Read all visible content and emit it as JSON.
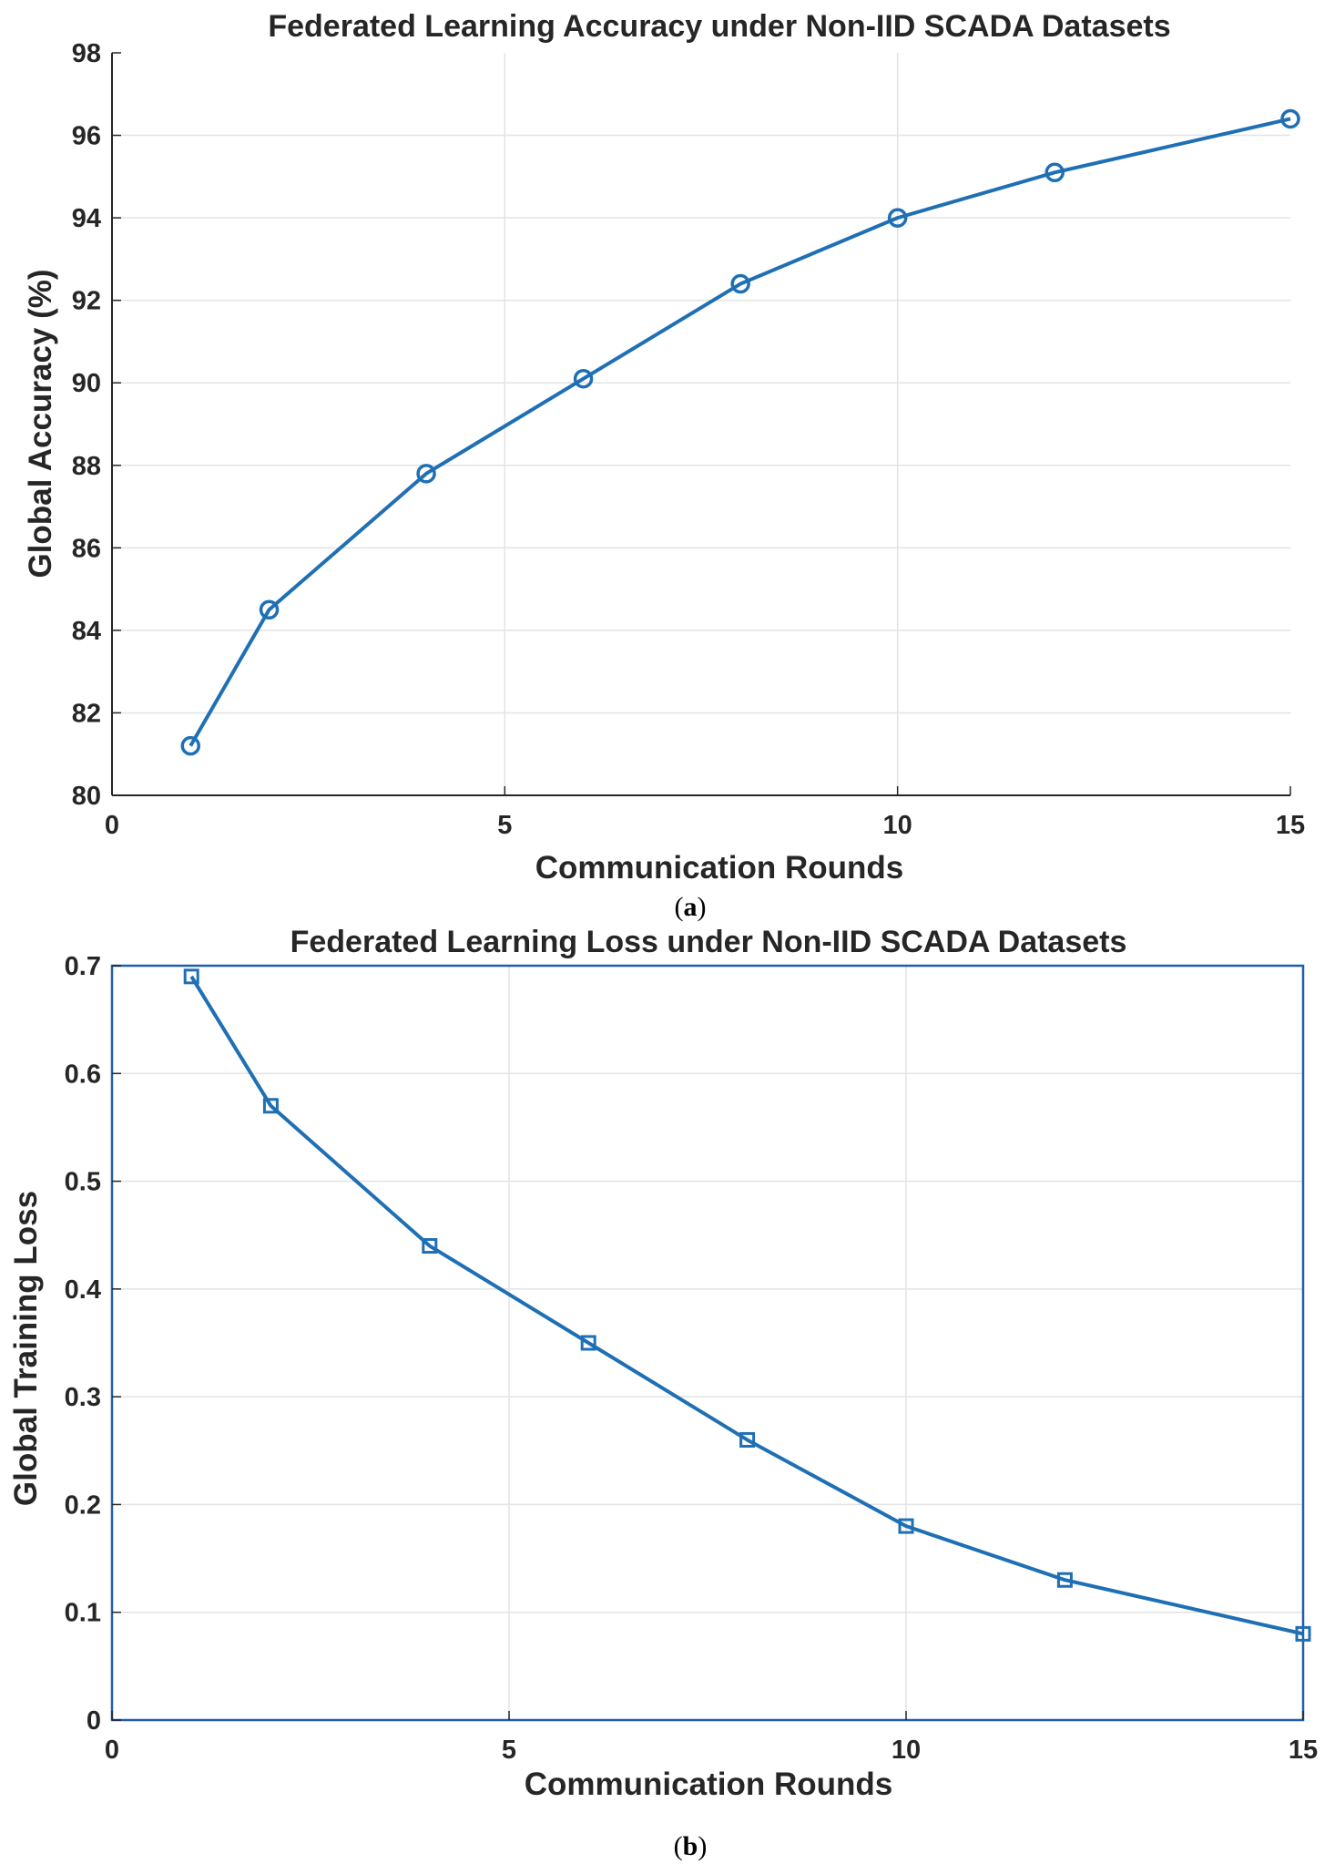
{
  "chart_data": [
    {
      "type": "line",
      "title": "Federated Learning Accuracy under Non-IID SCADA Datasets",
      "xlabel": "Communication Rounds",
      "ylabel": "Global Accuracy (%)",
      "caption": {
        "open": "(",
        "letter": "a",
        "close": ")"
      },
      "xlim": [
        0,
        15
      ],
      "ylim": [
        80,
        98
      ],
      "xticks": [
        0,
        5,
        10,
        15
      ],
      "yticks": [
        80,
        82,
        84,
        86,
        88,
        90,
        92,
        94,
        96,
        98
      ],
      "grid": true,
      "box": false,
      "marker": "circle",
      "color": "#1f6fb5",
      "series": [
        {
          "x": [
            1,
            2,
            4,
            6,
            8,
            10,
            12,
            15
          ],
          "values": [
            81.2,
            84.5,
            87.8,
            90.1,
            92.4,
            94.0,
            95.1,
            96.4
          ]
        }
      ]
    },
    {
      "type": "line",
      "title": "Federated Learning Loss under Non-IID SCADA Datasets",
      "xlabel": "Communication Rounds",
      "ylabel": "Global Training Loss",
      "caption": {
        "open": "(",
        "letter": "b",
        "close": ")"
      },
      "xlim": [
        0,
        15
      ],
      "ylim": [
        0,
        0.7
      ],
      "xticks": [
        0,
        5,
        10,
        15
      ],
      "yticks": [
        0,
        0.1,
        0.2,
        0.3,
        0.4,
        0.5,
        0.6,
        0.7
      ],
      "grid": true,
      "box": true,
      "marker": "square",
      "color": "#1f6fb5",
      "series": [
        {
          "x": [
            1,
            2,
            4,
            6,
            8,
            10,
            12,
            15
          ],
          "values": [
            0.69,
            0.57,
            0.44,
            0.35,
            0.26,
            0.18,
            0.13,
            0.08
          ]
        }
      ]
    }
  ]
}
